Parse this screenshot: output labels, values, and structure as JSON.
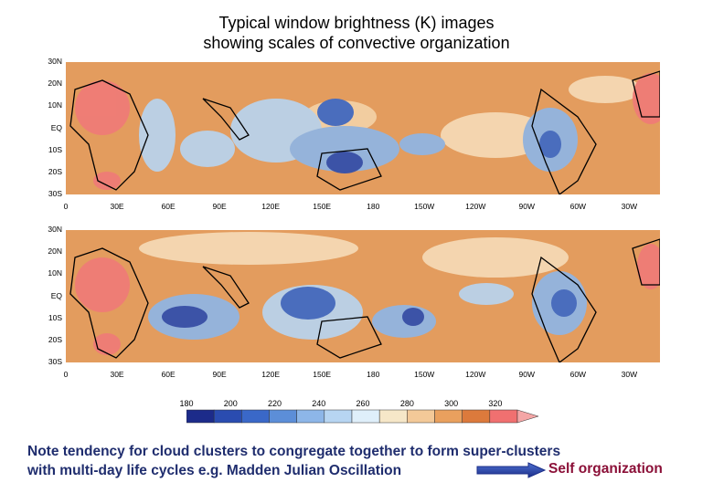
{
  "title": {
    "line1": "Typical window brightness (K) images",
    "line2": "showing scales of convective organization"
  },
  "map": {
    "lat_labels": [
      "30N",
      "20N",
      "10N",
      "EQ",
      "10S",
      "20S",
      "30S"
    ],
    "lon_labels": [
      "0",
      "30E",
      "60E",
      "90E",
      "120E",
      "150E",
      "180",
      "150W",
      "120W",
      "90W",
      "60W",
      "30W"
    ]
  },
  "colorbar": {
    "labels": [
      "180",
      "200",
      "220",
      "240",
      "260",
      "280",
      "300",
      "320"
    ],
    "colors": [
      "#1c2b8a",
      "#2a4cb0",
      "#3a68c8",
      "#5c8ed8",
      "#8db6e8",
      "#b7d5f2",
      "#dfeffa",
      "#f6e7c8",
      "#f3c998",
      "#e9a05e",
      "#dc7a3c",
      "#f07070"
    ]
  },
  "note": {
    "line1": "Note tendency for cloud clusters to congregate together to form super-clusters",
    "line2": "with multi-day life cycles e.g. Madden Julian Oscillation"
  },
  "self_org": "Self organization"
}
